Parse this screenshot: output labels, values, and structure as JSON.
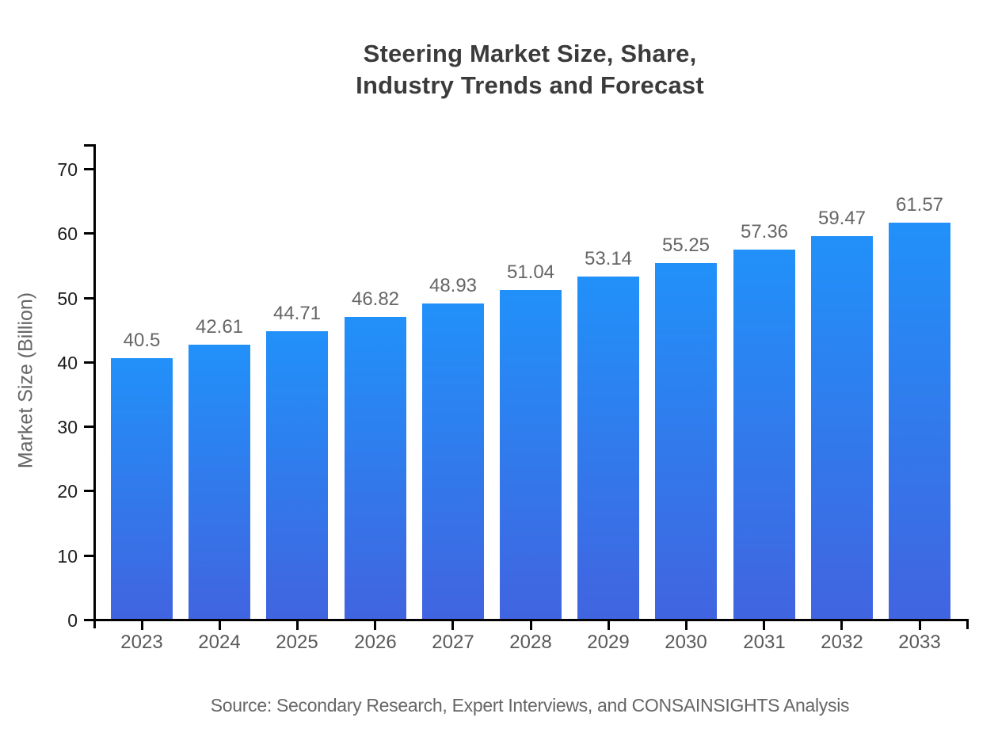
{
  "chart_data": {
    "type": "bar",
    "title": "Steering Market Size, Share,\nIndustry Trends and Forecast",
    "ylabel": "Market Size (Billion)",
    "xlabel": "",
    "source": "Source: Secondary Research, Expert Interviews, and CONSAINSIGHTS Analysis",
    "categories": [
      "2023",
      "2024",
      "2025",
      "2026",
      "2027",
      "2028",
      "2029",
      "2030",
      "2031",
      "2032",
      "2033"
    ],
    "values": [
      40.5,
      42.61,
      44.71,
      46.82,
      48.93,
      51.04,
      53.14,
      55.25,
      57.36,
      59.47,
      61.57
    ],
    "value_labels_shown": true,
    "ylim": [
      0,
      70
    ],
    "ytick_step": 10,
    "grid": false,
    "legend": "none",
    "colors": {
      "bar_gradient_top": "#2191f9",
      "bar_gradient_bottom": "#4164e0",
      "axis": "#000000",
      "title_text": "#3b3b3b",
      "value_label_text": "#666666",
      "y_tick_text": "#1a1a1a",
      "x_tick_text": "#595959",
      "source_text": "#666666",
      "background": "#ffffff"
    }
  }
}
